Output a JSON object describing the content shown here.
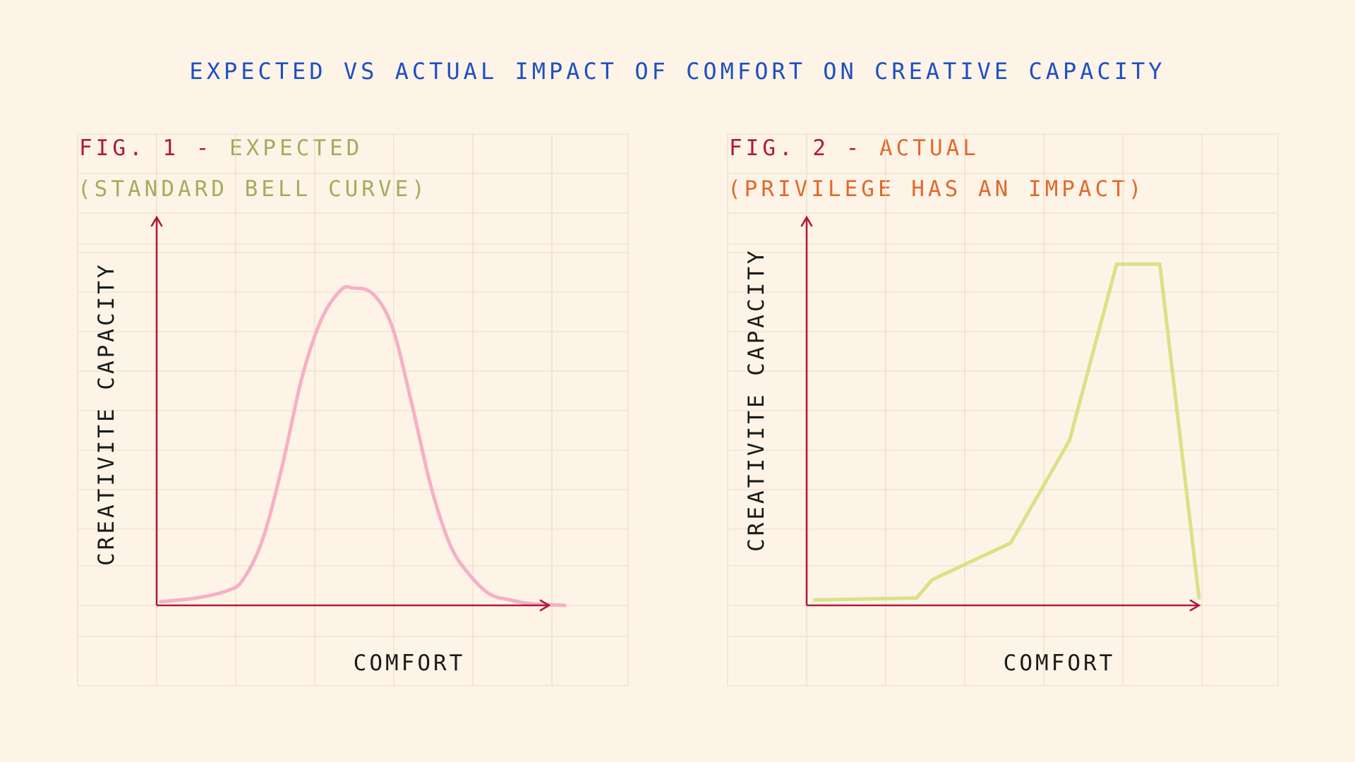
{
  "page": {
    "title": "EXPECTED VS ACTUAL IMPACT OF COMFORT ON CREATIVE CAPACITY"
  },
  "colors": {
    "background": "#fdf4e7",
    "title": "#1f4fc4",
    "axis": "#b01a3c",
    "grid": "#ecdcc6",
    "expected_curve": "#f5a9c4",
    "actual_curve": "#d6e07a",
    "expected_text": "#a8ab5e",
    "actual_text": "#e2692b"
  },
  "chart_data": [
    {
      "type": "line",
      "fig_number": "FIG. 1 - ",
      "fig_label": "EXPECTED",
      "subtitle": "(STANDARD BELL CURVE)",
      "xlabel": "COMFORT",
      "ylabel": "CREATIVITE CAPACITY",
      "xlim": [
        0,
        100
      ],
      "ylim": [
        0,
        100
      ],
      "grid": true,
      "series": [
        {
          "name": "Expected",
          "color": "#f5a9c4",
          "smooth": true,
          "x": [
            1,
            10,
            18,
            22,
            27,
            32,
            37,
            42,
            47,
            50,
            55,
            60,
            65,
            70,
            75,
            80,
            85,
            90,
            95,
            104
          ],
          "y": [
            1,
            2,
            4,
            7,
            18,
            38,
            62,
            78,
            86,
            86.5,
            85,
            76,
            55,
            32,
            16,
            8,
            3,
            1.5,
            0.5,
            0
          ]
        }
      ]
    },
    {
      "type": "line",
      "fig_number": "FIG. 2 - ",
      "fig_label": "ACTUAL",
      "subtitle": "(PRIVILEGE HAS AN IMPACT)",
      "xlabel": "COMFORT",
      "ylabel": "CREATIVITE CAPACITY",
      "xlim": [
        0,
        100
      ],
      "ylim": [
        0,
        100
      ],
      "grid": true,
      "series": [
        {
          "name": "Actual",
          "color": "#d6e07a",
          "smooth": false,
          "x": [
            2,
            28,
            32,
            52,
            67,
            79,
            90,
            100
          ],
          "y": [
            1.5,
            2,
            7,
            17,
            45,
            93,
            93,
            2
          ]
        }
      ]
    }
  ]
}
